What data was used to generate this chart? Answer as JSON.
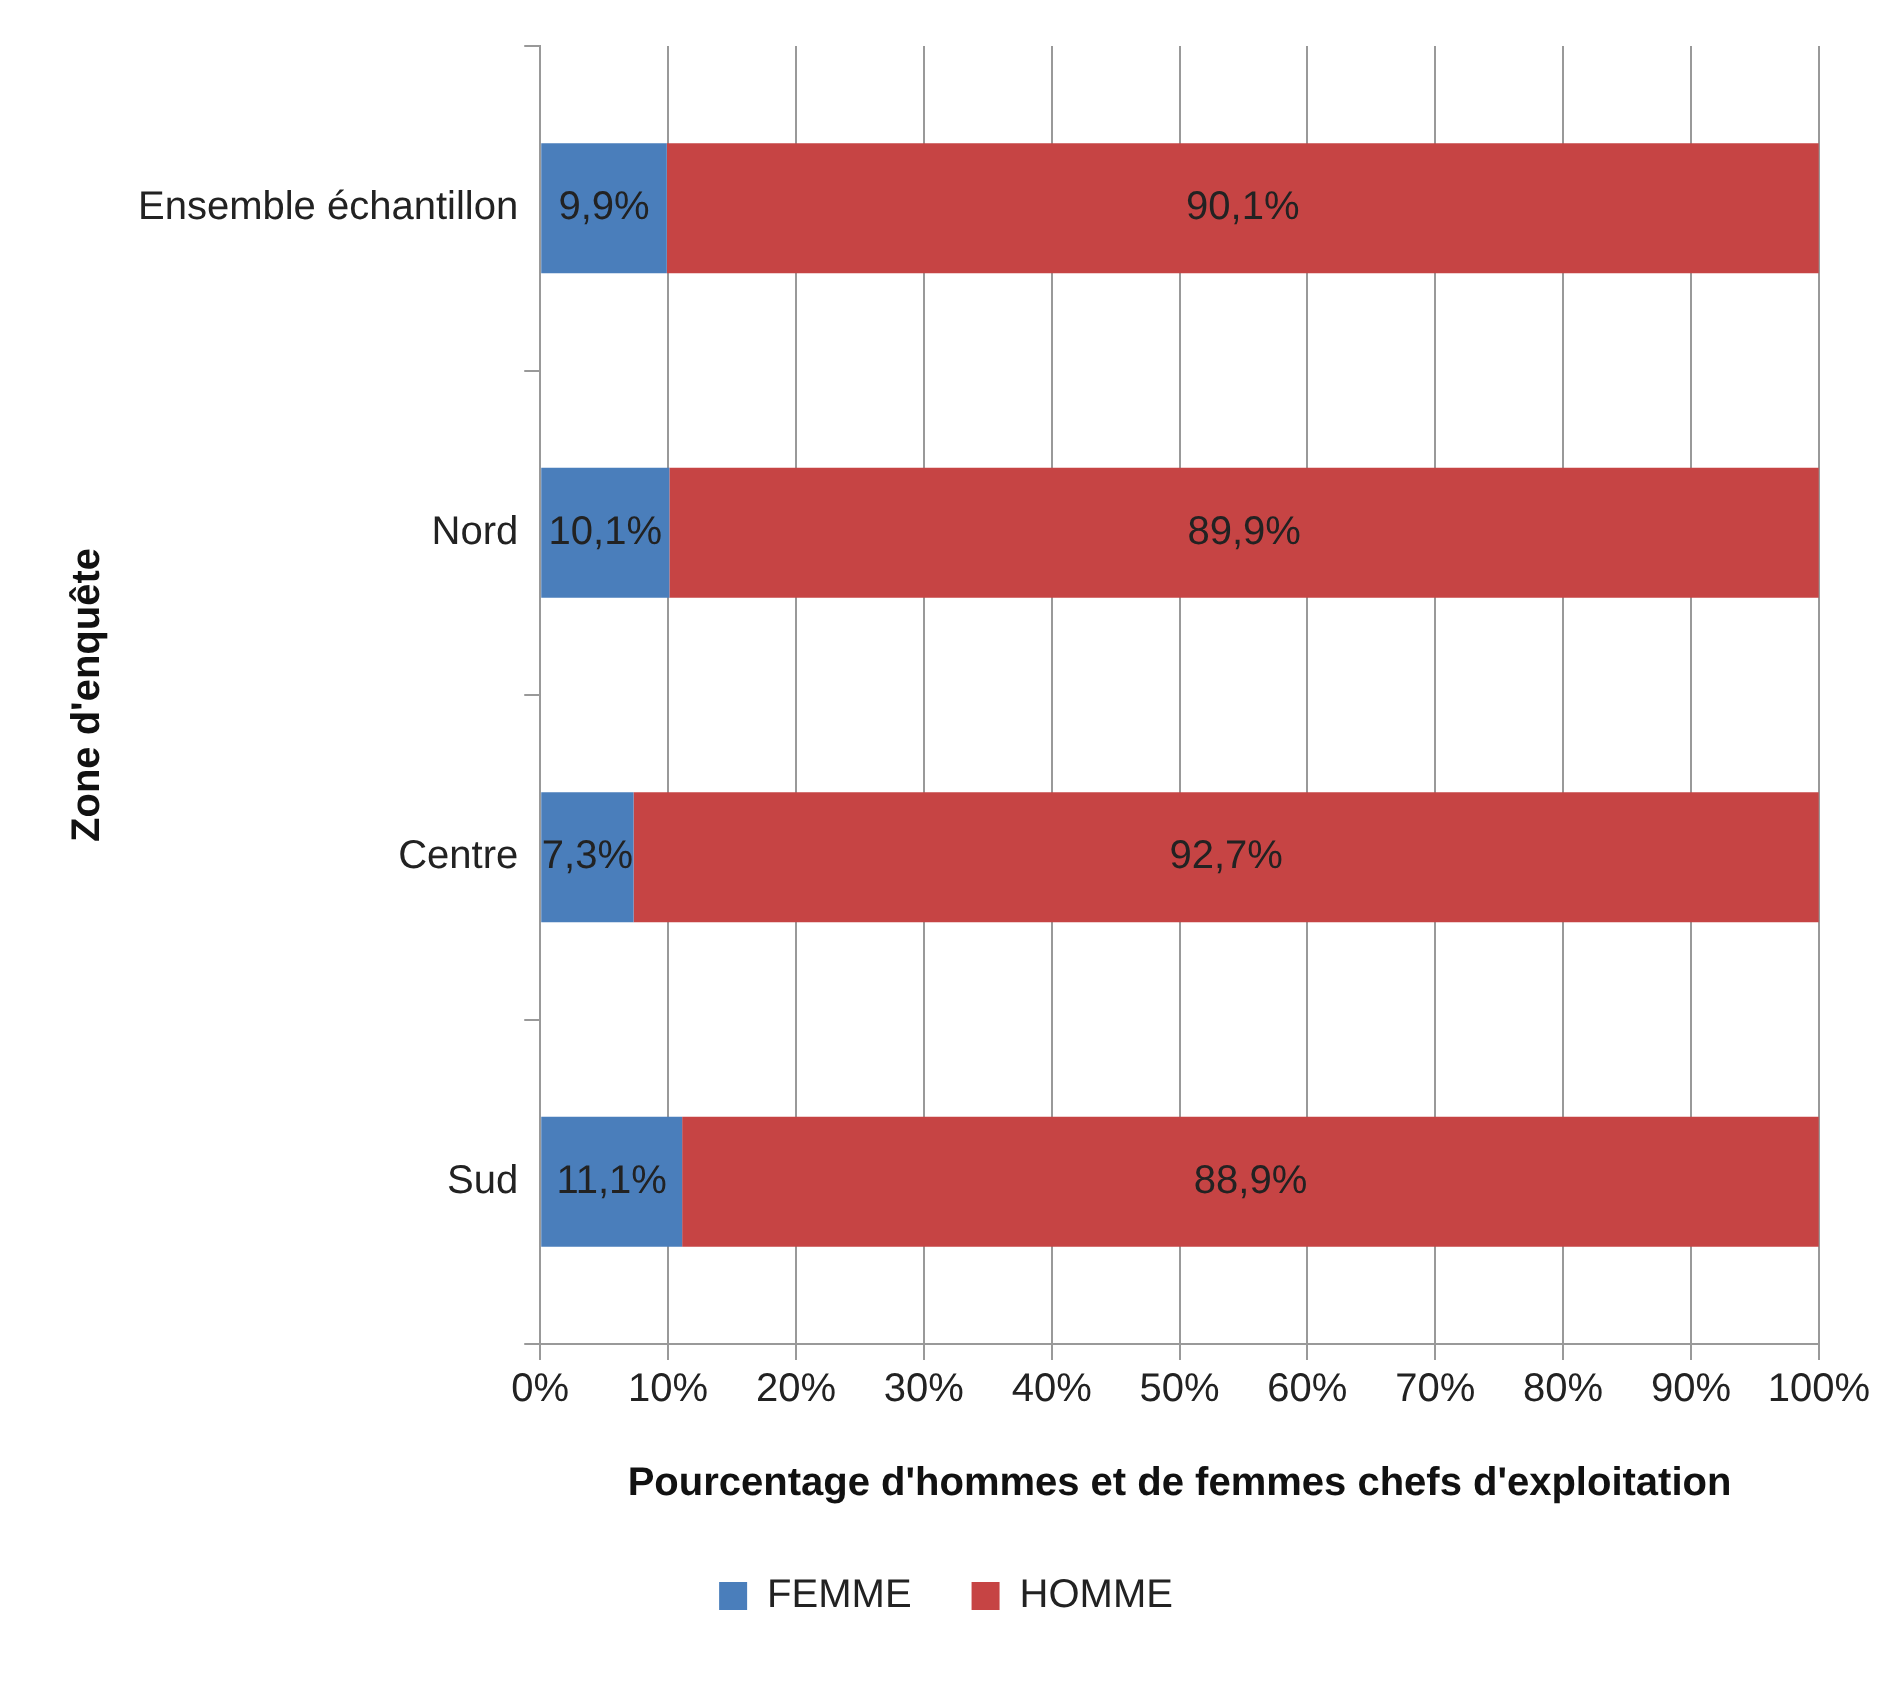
{
  "chart_data": {
    "type": "bar",
    "orientation": "horizontal",
    "stacked": true,
    "ylabel": "Zone d'enquête",
    "xlabel": "Pourcentage d'hommes et de femmes chefs d'exploitation",
    "categories": [
      "Ensemble échantillon",
      "Nord",
      "Centre",
      "Sud"
    ],
    "series": [
      {
        "name": "FEMME",
        "color": "#4a7ebb",
        "values": [
          9.9,
          10.1,
          7.3,
          11.1
        ],
        "value_labels": [
          "9,9%",
          "10,1%",
          "7,3%",
          "11,1%"
        ]
      },
      {
        "name": "HOMME",
        "color": "#c64444",
        "values": [
          90.1,
          89.9,
          92.7,
          88.9
        ],
        "value_labels": [
          "90,1%",
          "89,9%",
          "92,7%",
          "88,9%"
        ]
      }
    ],
    "xlim": [
      0,
      100
    ],
    "xticks": [
      {
        "value": 0,
        "label": "0%"
      },
      {
        "value": 10,
        "label": "10%"
      },
      {
        "value": 20,
        "label": "20%"
      },
      {
        "value": 30,
        "label": "30%"
      },
      {
        "value": 40,
        "label": "40%"
      },
      {
        "value": 50,
        "label": "50%"
      },
      {
        "value": 60,
        "label": "60%"
      },
      {
        "value": 70,
        "label": "70%"
      },
      {
        "value": 80,
        "label": "80%"
      },
      {
        "value": 90,
        "label": "90%"
      },
      {
        "value": 100,
        "label": "100%"
      }
    ],
    "grid": "x",
    "legend": "bottom"
  }
}
